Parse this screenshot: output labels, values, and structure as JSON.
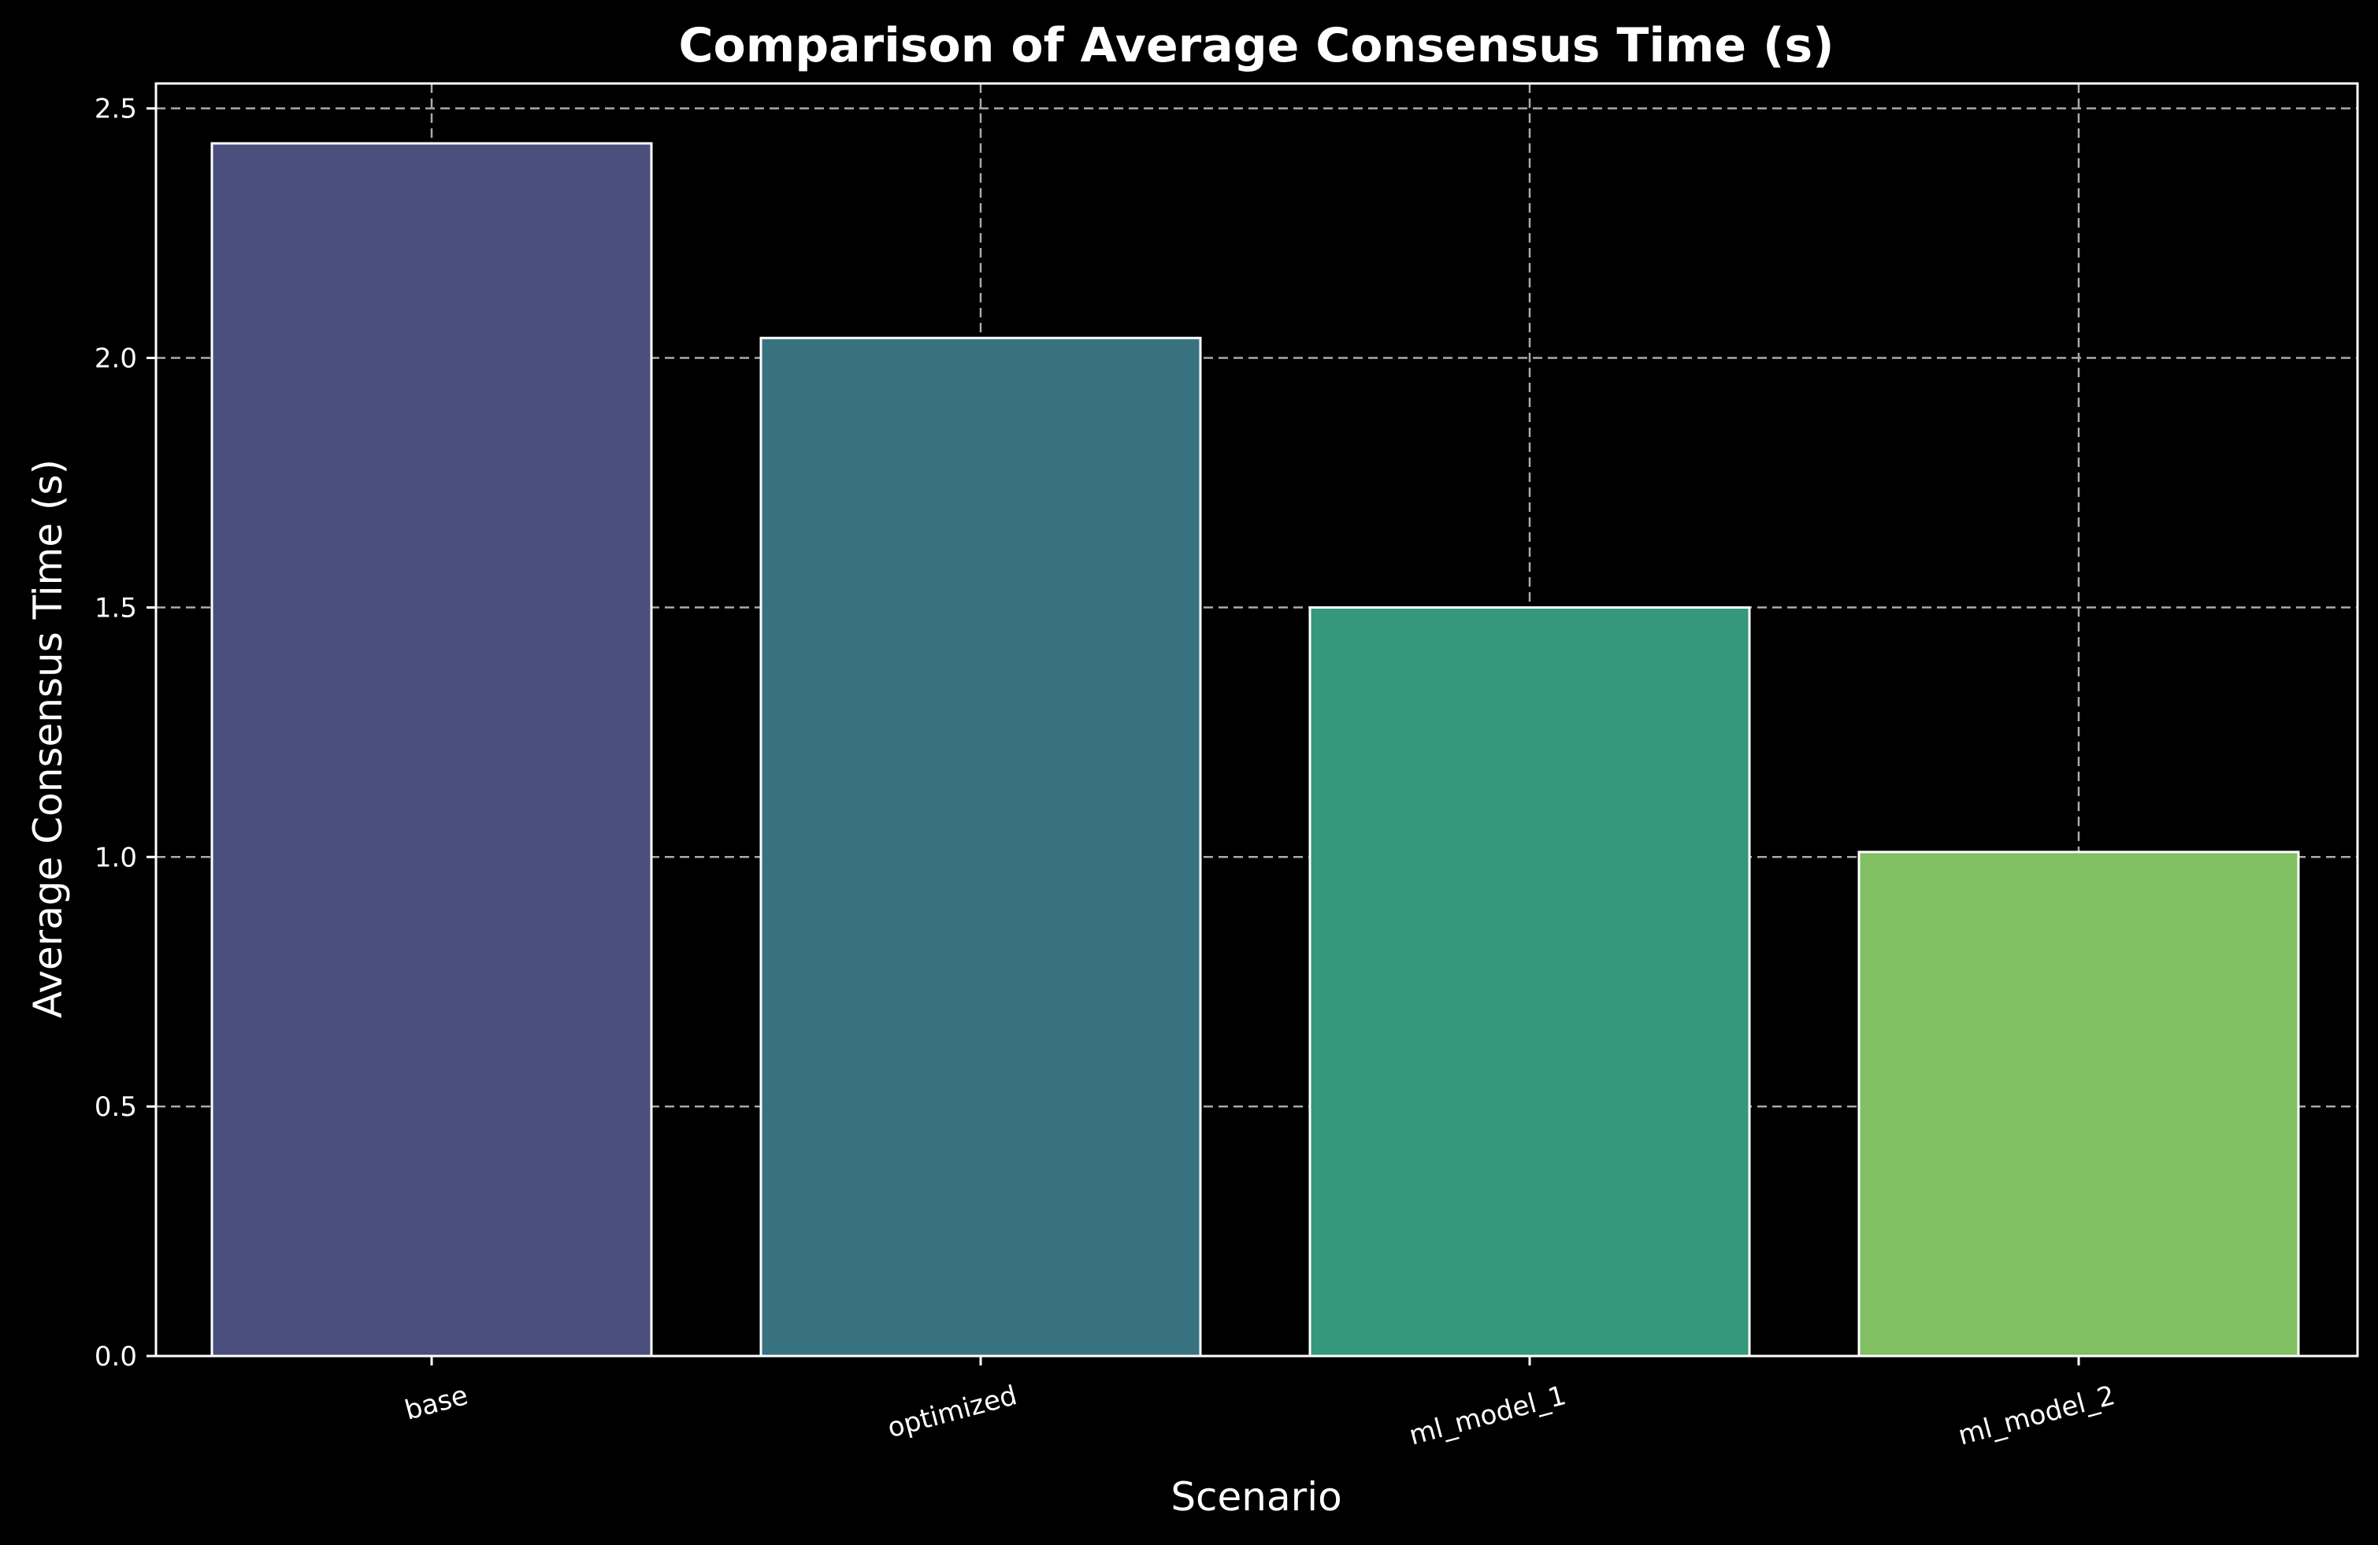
{
  "chart_data": {
    "type": "bar",
    "title": "Comparison of Average Consensus Time (s)",
    "xlabel": "Scenario",
    "ylabel": "Average Consensus Time (s)",
    "categories": [
      "base",
      "optimized",
      "ml_model_1",
      "ml_model_2"
    ],
    "values": [
      2.43,
      2.04,
      1.5,
      1.01
    ],
    "ylim": [
      0,
      2.55
    ],
    "yticks": [
      "0.0",
      "0.5",
      "1.0",
      "1.5",
      "2.0",
      "2.5"
    ],
    "bar_colors": [
      "#4b4f7d",
      "#387281",
      "#35977c",
      "#80c063"
    ],
    "grid": true,
    "background_color": "#000000",
    "text_color": "#ffffff",
    "grid_color": "#aaaaaa",
    "bar_edge_color": "#ffffff"
  }
}
